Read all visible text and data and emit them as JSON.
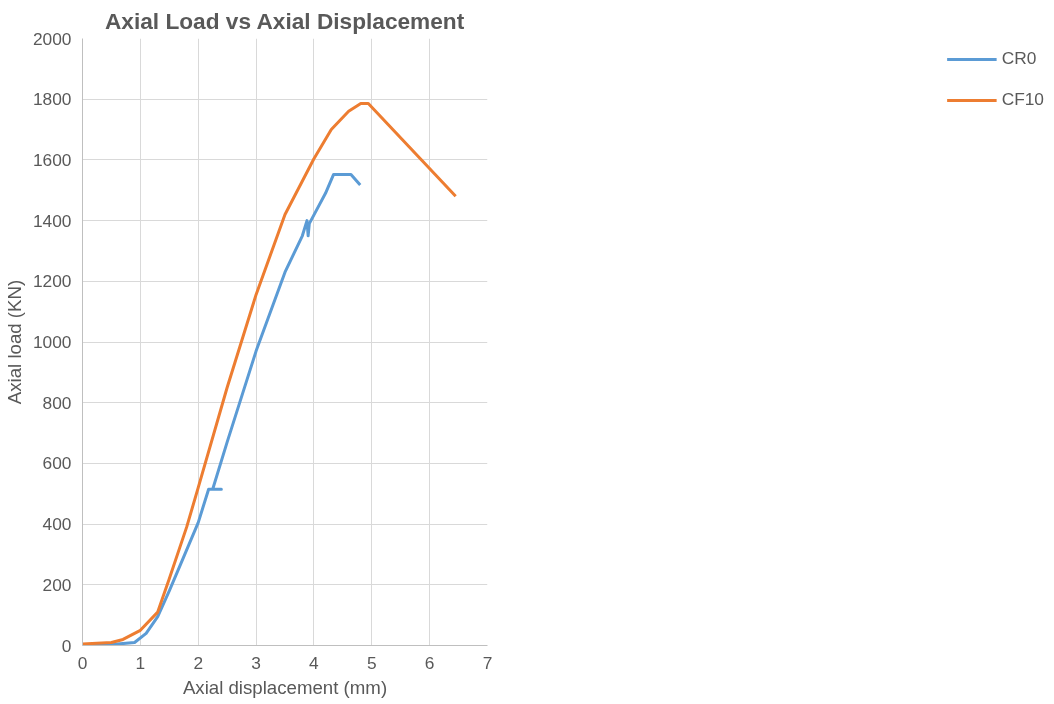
{
  "chart_data": {
    "type": "line",
    "title": "Axial Load vs Axial Displacement",
    "xlabel": "Axial displacement (mm)",
    "ylabel": "Axial load (KN)",
    "xlim": [
      0,
      7
    ],
    "xticks": [
      0,
      1,
      2,
      3,
      4,
      5,
      6,
      7
    ],
    "ylim": [
      0,
      2000
    ],
    "yticks": [
      0,
      200,
      400,
      600,
      800,
      1000,
      1200,
      1400,
      1600,
      1800,
      2000
    ],
    "grid": true,
    "legend": "right",
    "marker": "none",
    "line_style": "solid",
    "series": [
      {
        "name": "CR0",
        "color": "#5b9bd5",
        "x": [
          0,
          0.5,
          0.9,
          1.1,
          1.3,
          1.5,
          1.7,
          2.0,
          2.18,
          2.4,
          2.25,
          2.5,
          3.0,
          3.5,
          3.8,
          3.88,
          3.9,
          3.92,
          4.2,
          4.34,
          4.64,
          4.8
        ],
        "values": [
          0,
          3,
          10,
          40,
          95,
          180,
          270,
          405,
          515,
          515,
          515,
          670,
          970,
          1230,
          1350,
          1400,
          1350,
          1390,
          1490,
          1552,
          1552,
          1517
        ]
      },
      {
        "name": "CF10",
        "color": "#ed7d31",
        "x": [
          0,
          0.5,
          0.7,
          1.0,
          1.3,
          1.5,
          1.8,
          2.0,
          2.5,
          3.0,
          3.5,
          4.0,
          4.3,
          4.6,
          4.81,
          4.94,
          6.45
        ],
        "values": [
          5,
          10,
          20,
          50,
          110,
          220,
          390,
          520,
          850,
          1156,
          1420,
          1604,
          1700,
          1760,
          1786,
          1786,
          1480
        ]
      }
    ]
  }
}
